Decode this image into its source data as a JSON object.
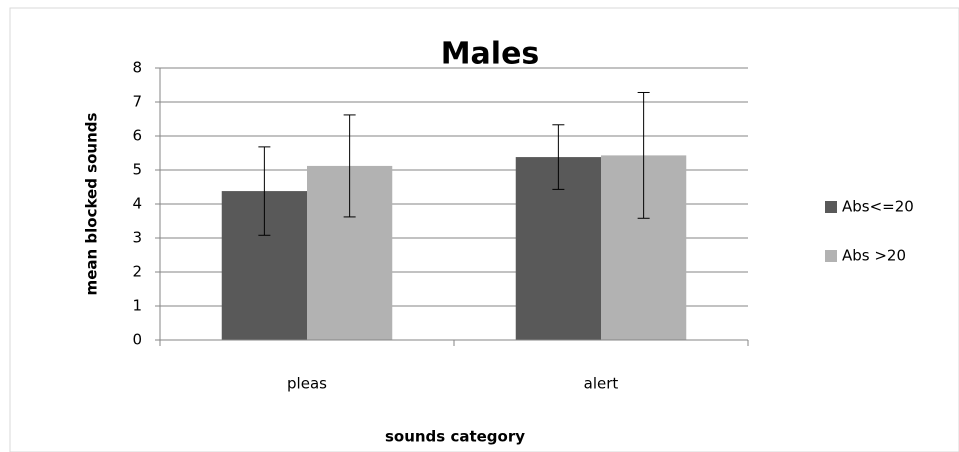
{
  "chart_data": {
    "type": "bar",
    "title": "Males",
    "x_label": "sounds category",
    "y_label": "mean blocked sounds",
    "categories": [
      "pleas",
      "alert"
    ],
    "series": [
      {
        "name": "Abs<=20",
        "color": "#595959",
        "values": [
          4.38,
          5.38
        ],
        "errors": [
          1.3,
          0.95
        ]
      },
      {
        "name": "Abs >20",
        "color": "#b2b2b2",
        "values": [
          5.12,
          5.43
        ],
        "errors": [
          1.5,
          1.85
        ]
      }
    ],
    "ylim": [
      0,
      8
    ],
    "yticks": [
      0,
      1,
      2,
      3,
      4,
      5,
      6,
      7,
      8
    ],
    "grid": true,
    "legend": "right"
  }
}
